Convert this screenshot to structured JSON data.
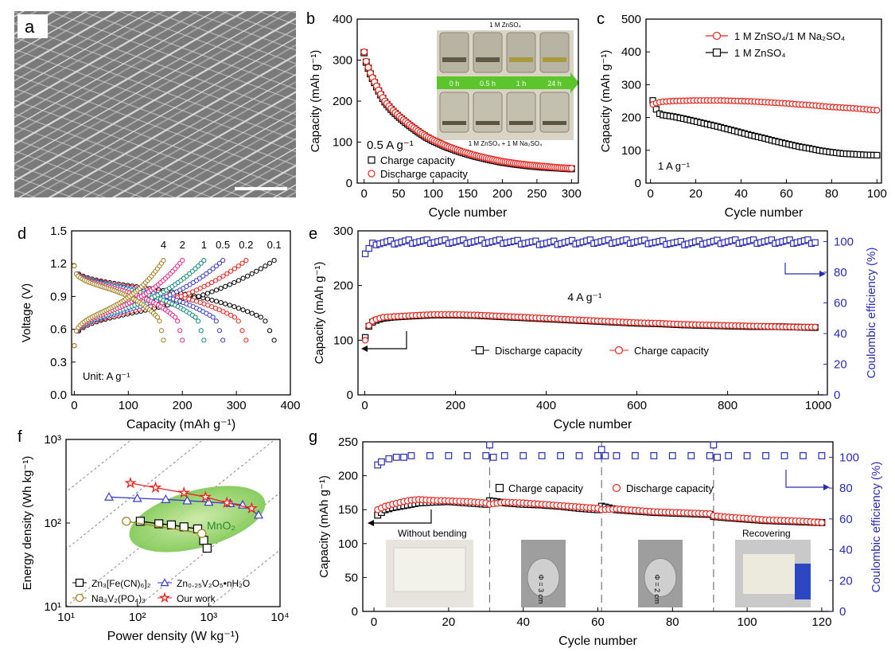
{
  "panel_letters": {
    "a": "a",
    "b": "b",
    "c": "c",
    "d": "d",
    "e": "e",
    "f": "f",
    "g": "g"
  },
  "chart_data": [
    {
      "panel": "a",
      "type": "image",
      "note_lines": []
    },
    {
      "panel": "b",
      "type": "scatter",
      "xlabel": "Cycle number",
      "ylabel": "Capacity (mAh g⁻¹)",
      "xlim": [
        -10,
        310
      ],
      "ylim": [
        0,
        400
      ],
      "xticks": [
        "0",
        "50",
        "100",
        "150",
        "200",
        "250",
        "300"
      ],
      "yticks": [
        "0",
        "100",
        "200",
        "300",
        "400"
      ],
      "annotation": "0.5 A g⁻¹",
      "inset": {
        "top_label": "1 M ZnSO₄",
        "bottom_label": "1 M ZnSO₄ + 1 M Na₂SO₄",
        "times": [
          "0 h",
          "0.5 h",
          "1 h",
          "24 h"
        ]
      },
      "series": [
        {
          "name": "Charge capacity",
          "marker": "square",
          "color": "#000000",
          "x": [
            0,
            2,
            5,
            10,
            15,
            20,
            25,
            30,
            40,
            50,
            60,
            70,
            80,
            90,
            100,
            120,
            140,
            160,
            180,
            200,
            220,
            240,
            260,
            280,
            300
          ],
          "y": [
            318,
            300,
            285,
            262,
            245,
            228,
            212,
            198,
            178,
            162,
            148,
            135,
            123,
            112,
            103,
            88,
            76,
            66,
            58,
            51,
            46,
            42,
            39,
            37,
            35
          ]
        },
        {
          "name": "Discharge capacity",
          "marker": "circle",
          "color": "#e8241d",
          "x": [
            0,
            2,
            5,
            10,
            15,
            20,
            25,
            30,
            40,
            50,
            60,
            70,
            80,
            90,
            100,
            120,
            140,
            160,
            180,
            200,
            220,
            240,
            260,
            280,
            300
          ],
          "y": [
            320,
            302,
            287,
            264,
            247,
            230,
            214,
            200,
            180,
            164,
            150,
            137,
            125,
            114,
            105,
            90,
            78,
            68,
            60,
            53,
            48,
            44,
            41,
            38,
            36
          ]
        }
      ]
    },
    {
      "panel": "c",
      "type": "scatter",
      "xlabel": "Cycle number",
      "ylabel": "Capacity (mAh g⁻¹)",
      "xlim": [
        -2,
        102
      ],
      "ylim": [
        0,
        500
      ],
      "xticks": [
        "0",
        "20",
        "40",
        "60",
        "80",
        "100"
      ],
      "yticks": [
        "0",
        "100",
        "200",
        "300",
        "400",
        "500"
      ],
      "annotation": "1 A g⁻¹",
      "series": [
        {
          "name": "1 M ZnSO₄/1 M Na₂SO₄",
          "marker": "circle",
          "color": "#e8241d",
          "x": [
            1,
            3,
            5,
            10,
            15,
            20,
            25,
            30,
            35,
            40,
            45,
            50,
            55,
            60,
            65,
            70,
            75,
            80,
            85,
            90,
            95,
            100
          ],
          "y": [
            240,
            245,
            248,
            250,
            251,
            252,
            252,
            252,
            251,
            250,
            249,
            247,
            245,
            243,
            240,
            238,
            235,
            232,
            230,
            228,
            225,
            222
          ]
        },
        {
          "name": "1 M ZnSO₄",
          "marker": "square",
          "color": "#000000",
          "x": [
            1,
            2,
            3,
            5,
            10,
            15,
            20,
            25,
            30,
            35,
            40,
            45,
            50,
            55,
            60,
            65,
            70,
            75,
            80,
            85,
            90,
            95,
            100
          ],
          "y": [
            252,
            235,
            215,
            208,
            203,
            196,
            188,
            180,
            172,
            163,
            154,
            145,
            137,
            128,
            120,
            112,
            106,
            99,
            94,
            90,
            88,
            86,
            85
          ]
        }
      ]
    },
    {
      "panel": "d",
      "type": "line",
      "xlabel": "Capacity (mAh g⁻¹)",
      "ylabel": "Voltage (V)",
      "xlim": [
        -5,
        400
      ],
      "ylim": [
        0,
        1.5
      ],
      "xticks": [
        "0",
        "100",
        "200",
        "300",
        "400"
      ],
      "yticks": [
        "0.0",
        "0.3",
        "0.6",
        "0.9",
        "1.2",
        "1.5"
      ],
      "annotation": "Unit: A g⁻¹",
      "series": [
        {
          "name": "0.1",
          "color": "#000000",
          "max_capacity": 370
        },
        {
          "name": "0.2",
          "color": "#e8241d",
          "max_capacity": 318
        },
        {
          "name": "0.5",
          "color": "#3a3ad0",
          "max_capacity": 275
        },
        {
          "name": "1",
          "color": "#12897e",
          "max_capacity": 240
        },
        {
          "name": "2",
          "color": "#e8248a",
          "max_capacity": 200
        },
        {
          "name": "4",
          "color": "#a08020",
          "max_capacity": 165
        }
      ]
    },
    {
      "panel": "e",
      "type": "scatter",
      "xlabel": "Cycle number",
      "ylabel": "Capacity (mAh g⁻¹)",
      "y2label": "Coulombic efficiency (%)",
      "xlim": [
        -15,
        1020
      ],
      "ylim": [
        0,
        300
      ],
      "y2lim": [
        0,
        107
      ],
      "xticks": [
        "0",
        "200",
        "400",
        "600",
        "800",
        "1000"
      ],
      "yticks": [
        "0",
        "100",
        "200",
        "300"
      ],
      "y2ticks": [
        "0",
        "20",
        "40",
        "60",
        "80",
        "100"
      ],
      "annotation": "4 A g⁻¹",
      "series": [
        {
          "name": "Discharge capacity",
          "marker": "square",
          "color": "#000000",
          "x": [
            1,
            10,
            20,
            40,
            60,
            100,
            150,
            200,
            250,
            300,
            350,
            400,
            450,
            500,
            550,
            600,
            650,
            700,
            750,
            800,
            850,
            900,
            950,
            1000
          ],
          "y": [
            105,
            128,
            135,
            140,
            142,
            144,
            146,
            146,
            145,
            143,
            141,
            139,
            137,
            135,
            133,
            131,
            130,
            128,
            127,
            126,
            125,
            125,
            124,
            123
          ]
        },
        {
          "name": "Charge capacity",
          "marker": "circle",
          "color": "#e8241d",
          "x": [
            1,
            10,
            20,
            40,
            60,
            100,
            150,
            200,
            250,
            300,
            350,
            400,
            450,
            500,
            550,
            600,
            650,
            700,
            750,
            800,
            850,
            900,
            950,
            1000
          ],
          "y": [
            100,
            130,
            137,
            142,
            143,
            145,
            147,
            147,
            146,
            144,
            142,
            140,
            138,
            136,
            134,
            132,
            131,
            129,
            128,
            127,
            126,
            125,
            124,
            124
          ]
        },
        {
          "name": "Coulombic efficiency",
          "marker": "square",
          "color": "#2b2bb5",
          "axis": "right",
          "x": [
            1,
            20,
            100,
            200,
            300,
            400,
            500,
            600,
            700,
            800,
            900,
            1000
          ],
          "y": [
            92,
            99,
            100,
            100,
            100,
            99,
            100,
            100,
            99,
            100,
            100,
            100
          ]
        }
      ]
    },
    {
      "panel": "f",
      "type": "scatter",
      "xlabel": "Power density (W kg⁻¹)",
      "ylabel": "Energy density (Wh kg⁻¹)",
      "xscale": "log",
      "yscale": "log",
      "xlim": [
        10,
        10000
      ],
      "ylim": [
        10,
        1000
      ],
      "xticks": [
        "10¹",
        "10²",
        "10³",
        "10⁴"
      ],
      "yticks": [
        "10¹",
        "10²",
        "10³"
      ],
      "region_label": "MnO₂",
      "series": [
        {
          "name": "Zn₃[Fe(CN)₆]₂",
          "marker": "square",
          "color": "#000000",
          "x": [
            110,
            200,
            300,
            450,
            700,
            850,
            950
          ],
          "y": [
            105,
            98,
            95,
            90,
            85,
            62,
            50
          ]
        },
        {
          "name": "Na₃V₂(PO₄)₃",
          "marker": "circle",
          "color": "#a08020",
          "x": [
            70,
            800
          ],
          "y": [
            105,
            75
          ]
        },
        {
          "name": "Zn₀.₂₅V₂O₅•nH₂O",
          "marker": "triangle",
          "color": "#3a3ad0",
          "x": [
            40,
            100,
            250,
            500,
            1000,
            2000,
            3000,
            5000
          ],
          "y": [
            205,
            198,
            192,
            185,
            178,
            172,
            165,
            125
          ]
        },
        {
          "name": "Our work",
          "marker": "star",
          "color": "#e8241d",
          "x": [
            80,
            180,
            450,
            900,
            1800,
            4000
          ],
          "y": [
            300,
            265,
            230,
            205,
            175,
            150
          ]
        }
      ]
    },
    {
      "panel": "g",
      "type": "scatter",
      "xlabel": "Cycle number",
      "ylabel": "Capacity (mAh g⁻¹)",
      "y2label": "Coulombic efficiency (%)",
      "xlim": [
        -3,
        123
      ],
      "ylim": [
        0,
        250
      ],
      "y2lim": [
        0,
        110
      ],
      "xticks": [
        "0",
        "20",
        "40",
        "60",
        "80",
        "100",
        "120"
      ],
      "yticks": [
        "0",
        "50",
        "100",
        "150",
        "200",
        "250"
      ],
      "y2ticks": [
        "0",
        "20",
        "40",
        "60",
        "80",
        "100"
      ],
      "dividers": [
        31,
        61,
        91
      ],
      "photo_labels": [
        "Without bending",
        "Φ = 3 cm",
        "Φ = 2 cm",
        "Recovering"
      ],
      "series": [
        {
          "name": "Charge capacity",
          "marker": "square",
          "color": "#000000",
          "x": [
            1,
            3,
            5,
            8,
            10,
            12,
            15,
            20,
            25,
            30,
            31,
            35,
            40,
            45,
            50,
            55,
            60,
            61,
            65,
            70,
            75,
            80,
            85,
            90,
            91,
            95,
            100,
            105,
            110,
            115,
            120
          ],
          "y": [
            142,
            150,
            153,
            156,
            158,
            160,
            161,
            162,
            160,
            158,
            163,
            160,
            158,
            157,
            155,
            152,
            150,
            155,
            150,
            148,
            146,
            145,
            144,
            143,
            140,
            138,
            136,
            134,
            133,
            132,
            131
          ]
        },
        {
          "name": "Discharge capacity",
          "marker": "circle",
          "color": "#e8241d",
          "x": [
            1,
            3,
            5,
            8,
            10,
            12,
            15,
            20,
            25,
            30,
            31,
            35,
            40,
            45,
            50,
            55,
            60,
            61,
            65,
            70,
            75,
            80,
            85,
            90,
            91,
            95,
            100,
            105,
            110,
            115,
            120
          ],
          "y": [
            150,
            155,
            158,
            162,
            164,
            165,
            164,
            163,
            162,
            160,
            158,
            161,
            160,
            158,
            156,
            154,
            152,
            150,
            151,
            149,
            147,
            146,
            145,
            144,
            141,
            139,
            137,
            135,
            134,
            133,
            131
          ]
        },
        {
          "name": "Coulombic efficiency",
          "marker": "square",
          "color": "#2b2bb5",
          "axis": "right",
          "x": [
            1,
            2,
            4,
            6,
            8,
            10,
            15,
            20,
            25,
            30,
            31,
            32,
            35,
            40,
            45,
            50,
            55,
            60,
            61,
            62,
            65,
            70,
            75,
            80,
            85,
            90,
            91,
            92,
            95,
            100,
            105,
            110,
            115,
            120
          ],
          "y": [
            95,
            97,
            99,
            100,
            100,
            101,
            101,
            101,
            101,
            101,
            108,
            100,
            101,
            101,
            101,
            101,
            101,
            101,
            105,
            101,
            101,
            101,
            101,
            101,
            101,
            101,
            108,
            100,
            101,
            101,
            101,
            101,
            101,
            101
          ]
        }
      ]
    }
  ]
}
